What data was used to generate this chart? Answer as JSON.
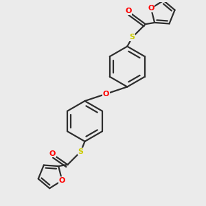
{
  "background_color": "#ebebeb",
  "bond_color": "#2d2d2d",
  "O_color": "#ff0000",
  "S_color": "#cccc00",
  "line_width": 1.6,
  "figsize": [
    3.0,
    3.0
  ],
  "dpi": 100,
  "xlim": [
    0,
    10
  ],
  "ylim": [
    0,
    10
  ]
}
